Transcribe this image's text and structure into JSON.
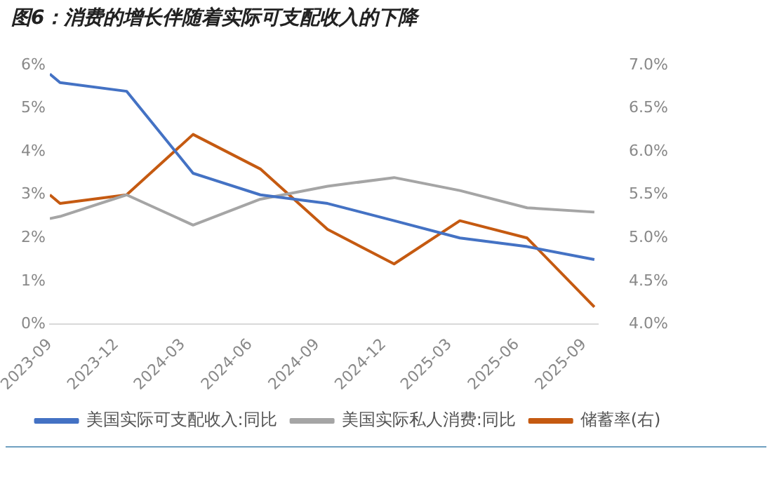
{
  "chart_data": {
    "type": "line",
    "title": "图6：消费的增长伴随着实际可支配收入的下降",
    "x": [
      "2023-09-01",
      "2023-09-15",
      "2023-12-15",
      "2024-03-15",
      "2024-06-15",
      "2024-09-15",
      "2024-12-15",
      "2025-03-15",
      "2025-06-15",
      "2025-09-15"
    ],
    "xlim": [
      "2023-09-01",
      "2025-09-20"
    ],
    "xticks": [
      "2023-09",
      "2023-12",
      "2024-03",
      "2024-06",
      "2024-09",
      "2024-12",
      "2025-03",
      "2025-06",
      "2025-09"
    ],
    "ylim": [
      0,
      6
    ],
    "yticks": [
      {
        "value": 0,
        "label": "0%"
      },
      {
        "value": 1,
        "label": "1%"
      },
      {
        "value": 2,
        "label": "2%"
      },
      {
        "value": 3,
        "label": "3%"
      },
      {
        "value": 4,
        "label": "4%"
      },
      {
        "value": 5,
        "label": "5%"
      },
      {
        "value": 6,
        "label": "6%"
      }
    ],
    "y2lim": [
      4,
      7
    ],
    "y2ticks": [
      {
        "value": 4,
        "label": "4.0%"
      },
      {
        "value": 4.5,
        "label": "4.5%"
      },
      {
        "value": 5,
        "label": "5.0%"
      },
      {
        "value": 5.5,
        "label": "5.5%"
      },
      {
        "value": 6,
        "label": "6.0%"
      },
      {
        "value": 6.5,
        "label": "6.5%"
      },
      {
        "value": 7,
        "label": "7.0%"
      }
    ],
    "series": [
      {
        "name": "美国实际可支配收入:同比",
        "color": "#4472c4",
        "values": [
          5.8,
          5.6,
          5.4,
          3.5,
          3.0,
          2.8,
          2.4,
          2.0,
          1.8,
          1.5
        ]
      },
      {
        "name": "美国实际私人消费:同比",
        "color": "#a5a5a5",
        "values": [
          2.45,
          2.5,
          3.0,
          2.3,
          2.9,
          3.2,
          3.4,
          3.1,
          2.7,
          2.6
        ]
      },
      {
        "name": "储蓄率(右)",
        "color": "#c55a11",
        "axis": "y2",
        "values": [
          5.5,
          5.4,
          5.5,
          6.2,
          5.8,
          5.1,
          4.7,
          5.2,
          5.0,
          4.2
        ]
      }
    ],
    "grid": false,
    "legend": "bottom",
    "marker": "none",
    "line_style": "solid"
  }
}
